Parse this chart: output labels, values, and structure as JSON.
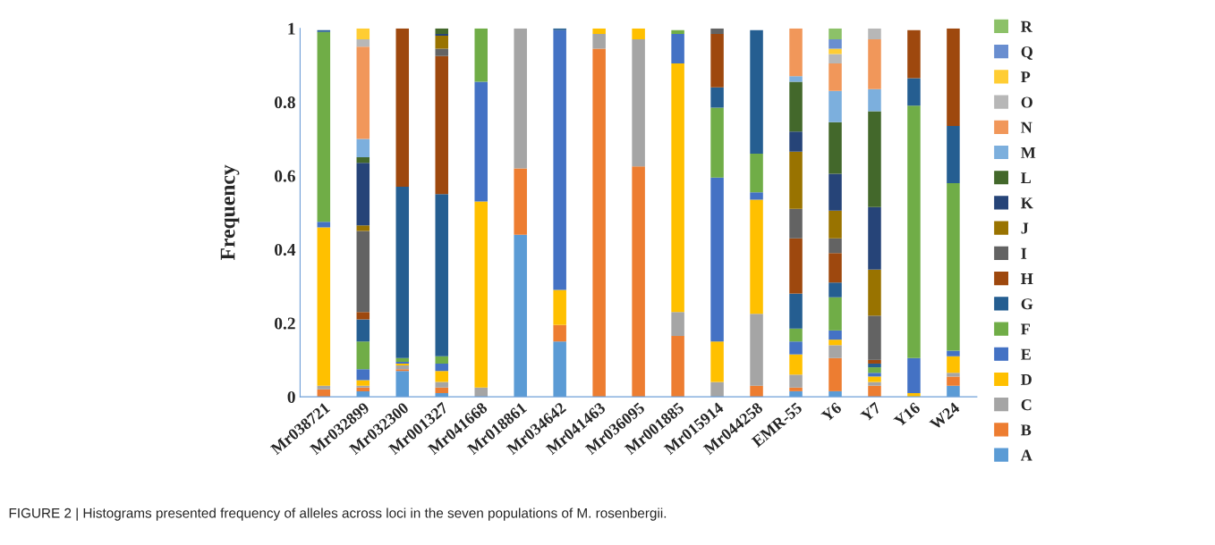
{
  "chart_data": {
    "type": "bar",
    "stacked": true,
    "ylabel": "Frequency",
    "categories": [
      "Mr038721",
      "Mr032899",
      "Mr032300",
      "Mr001327",
      "Mr041668",
      "Mr018861",
      "Mr034642",
      "Mr041463",
      "Mr036095",
      "Mr001885",
      "Mr015914",
      "Mr044258",
      "EMR-55",
      "Y6",
      "Y7",
      "Y16",
      "W24"
    ],
    "ylim": [
      0,
      1
    ],
    "yticks": [
      0,
      0.2,
      0.4,
      0.6,
      0.8,
      1
    ],
    "grid": false,
    "legend": "right",
    "annotations": [
      "FIGURE 2 | Histograms presented frequency of alleles across loci in the seven populations of M. rosenbergii."
    ],
    "series": [
      {
        "name": "A",
        "color": "#5b9bd5",
        "values": [
          null,
          0.015,
          0.07,
          0.01,
          0,
          0.44,
          0.15,
          0,
          0,
          null,
          0,
          null,
          0.015,
          0.015,
          0,
          null,
          0.03
        ]
      },
      {
        "name": "B",
        "color": "#ed7d31",
        "values": [
          0.02,
          0.01,
          0.005,
          0.015,
          0,
          0.18,
          0.045,
          0.945,
          0.625,
          0.165,
          0,
          0.03,
          0.01,
          0.09,
          0.03,
          0,
          0.025
        ]
      },
      {
        "name": "C",
        "color": "#a5a5a5",
        "values": [
          0.01,
          0.005,
          0.01,
          0.015,
          0.025,
          0.38,
          0,
          0.04,
          0.345,
          0.065,
          0.04,
          0.195,
          0.035,
          0.035,
          0.01,
          0,
          0.01
        ]
      },
      {
        "name": "D",
        "color": "#ffc000",
        "values": [
          0.43,
          0.015,
          0.005,
          0.03,
          0.505,
          0,
          0.095,
          0.015,
          0.03,
          0.675,
          0.11,
          0.31,
          0.055,
          0.015,
          0.015,
          0.01,
          0.045
        ]
      },
      {
        "name": "E",
        "color": "#4472c4",
        "values": [
          0.015,
          0.03,
          0.005,
          0.02,
          0.325,
          0,
          0.705,
          0,
          0,
          0.08,
          0.445,
          0.02,
          0.035,
          0.025,
          0.01,
          0.095,
          0.015
        ]
      },
      {
        "name": "F",
        "color": "#70ad47",
        "values": [
          0.515,
          0.075,
          0.01,
          0.02,
          0.145,
          0,
          0,
          0,
          0,
          0.01,
          0.19,
          0.105,
          0.035,
          0.09,
          0.015,
          0.685,
          0.455
        ]
      },
      {
        "name": "G",
        "color": "#255e91",
        "values": [
          0.005,
          0.06,
          0.465,
          0.44,
          0,
          0,
          0.005,
          0,
          0,
          0,
          0.055,
          0.335,
          0.095,
          0.04,
          0.01,
          0.075,
          0.155
        ]
      },
      {
        "name": "H",
        "color": "#9e480e",
        "values": [
          0,
          0.02,
          0.43,
          0.375,
          0,
          0,
          0,
          0,
          0,
          0,
          0.145,
          0,
          0.15,
          0.08,
          0.01,
          0.13,
          0.265
        ]
      },
      {
        "name": "I",
        "color": "#636363",
        "values": [
          0,
          0.22,
          0,
          0.02,
          0,
          0,
          0,
          0,
          0,
          0,
          0.015,
          0,
          0.08,
          0.04,
          0.12,
          0,
          0
        ]
      },
      {
        "name": "J",
        "color": "#997300",
        "values": [
          0,
          0.015,
          0,
          0.035,
          0,
          0,
          0,
          0,
          0,
          0,
          0,
          0,
          0.155,
          0.075,
          0.125,
          0,
          0
        ]
      },
      {
        "name": "K",
        "color": "#264478",
        "values": [
          0,
          0.17,
          0,
          0.005,
          0,
          0,
          0,
          0,
          0,
          0,
          0,
          0,
          0.055,
          0.1,
          0.17,
          0,
          0
        ]
      },
      {
        "name": "L",
        "color": "#43682b",
        "values": [
          0,
          0.015,
          0,
          0.015,
          0,
          0,
          0,
          0,
          0,
          0,
          0,
          0,
          0.135,
          0.14,
          0.26,
          0,
          0
        ]
      },
      {
        "name": "M",
        "color": "#7cafdd",
        "values": [
          0,
          0.05,
          0,
          0,
          0,
          0,
          0,
          0,
          0,
          0,
          0,
          0,
          0.015,
          0.085,
          0.06,
          0,
          0
        ]
      },
      {
        "name": "N",
        "color": "#f1975a",
        "values": [
          0,
          0.25,
          0,
          0,
          0,
          0,
          0,
          0,
          0,
          0,
          0,
          0,
          0.13,
          0.075,
          0.135,
          0,
          0
        ]
      },
      {
        "name": "O",
        "color": "#b7b7b7",
        "values": [
          0,
          0.02,
          0,
          0,
          0,
          0,
          0,
          0,
          0,
          0,
          0,
          0,
          0,
          0.025,
          0.03,
          0,
          0
        ]
      },
      {
        "name": "P",
        "color": "#ffcd33",
        "values": [
          0,
          0.03,
          0,
          0,
          0,
          0,
          0,
          0,
          0,
          0,
          0,
          0,
          0,
          0.015,
          0,
          0,
          0
        ]
      },
      {
        "name": "Q",
        "color": "#698ed0",
        "values": [
          0,
          0,
          0,
          0,
          0,
          0,
          0,
          0,
          0,
          0,
          0,
          0,
          0,
          0.025,
          0,
          0,
          0
        ]
      },
      {
        "name": "R",
        "color": "#8cc168",
        "values": [
          0,
          0,
          0,
          0,
          0,
          0,
          0,
          0,
          0,
          0,
          0,
          0,
          0,
          0.03,
          0,
          0,
          0
        ]
      }
    ]
  }
}
